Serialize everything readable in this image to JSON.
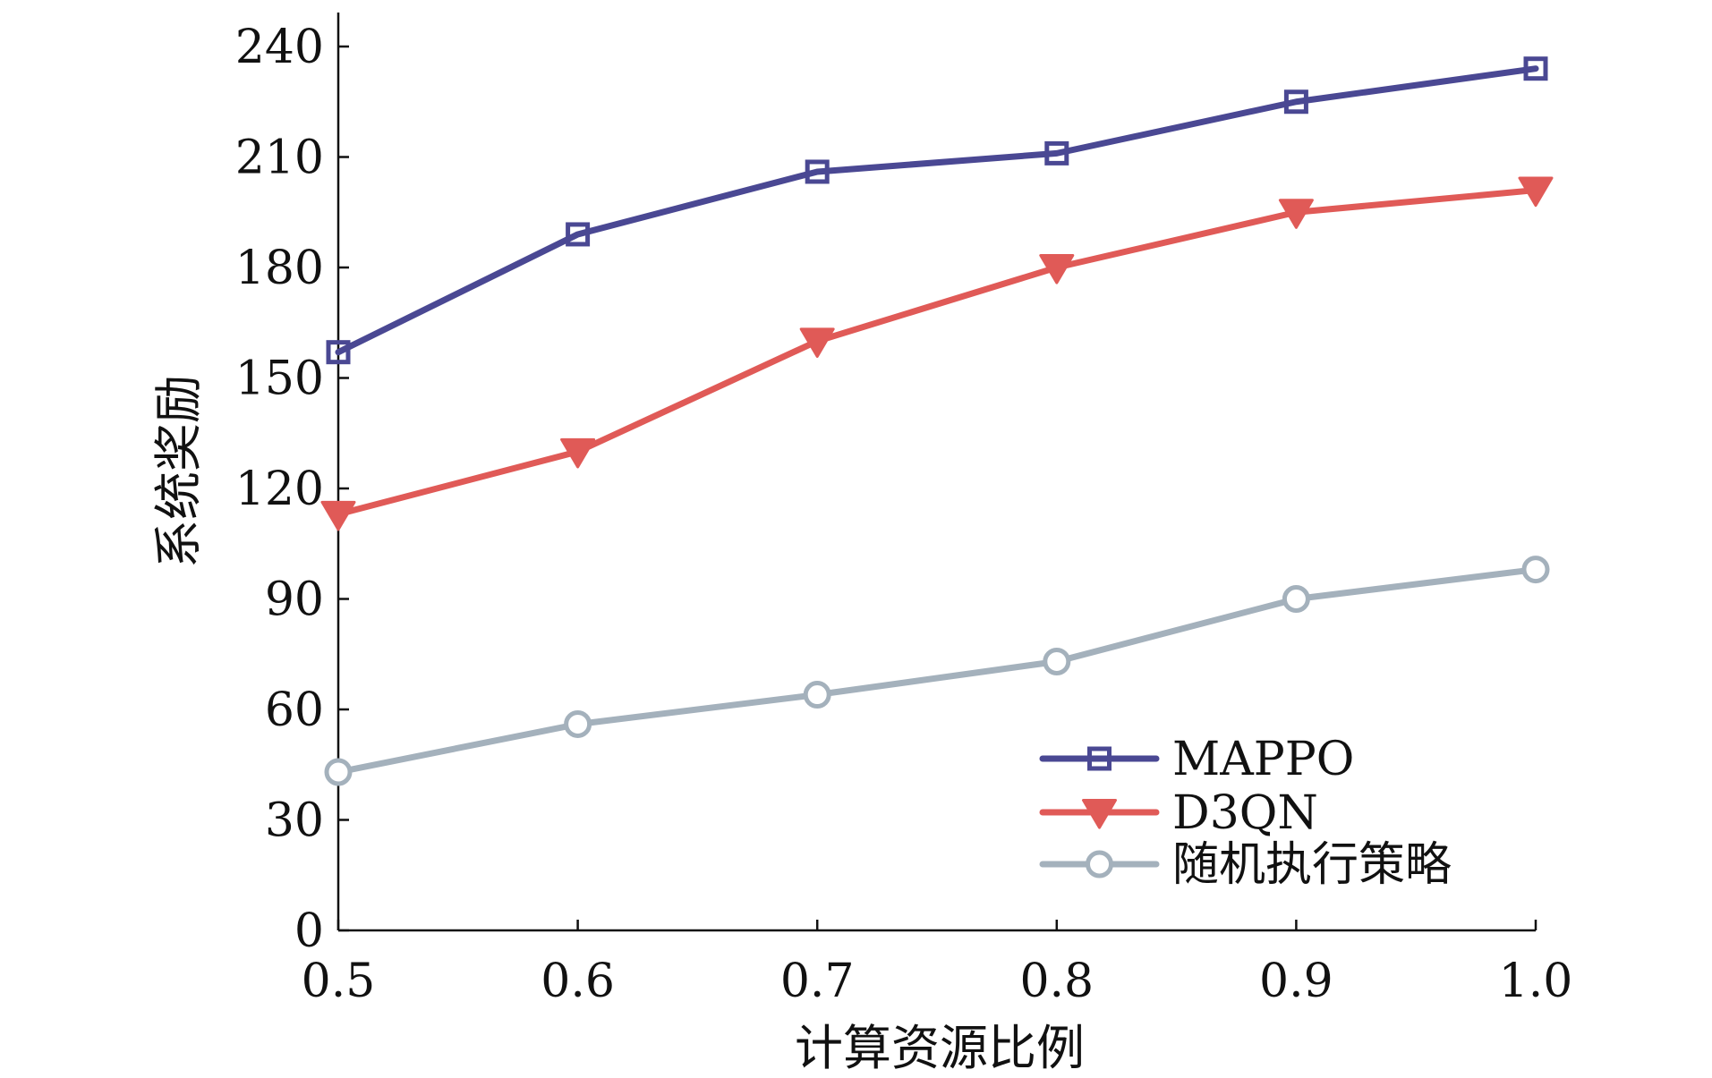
{
  "chart_data": {
    "type": "line",
    "title": "",
    "xlabel": "计算资源比例",
    "ylabel": "系统奖励",
    "x": [
      0.5,
      0.6,
      0.7,
      0.8,
      0.9,
      1.0
    ],
    "x_tick_labels": [
      "0.5",
      "0.6",
      "0.7",
      "0.8",
      "0.9",
      "1.0"
    ],
    "y_ticks": [
      0,
      30,
      60,
      90,
      120,
      150,
      180,
      210,
      240
    ],
    "y_tick_labels": [
      "0",
      "30",
      "60",
      "90",
      "120",
      "150",
      "180",
      "210",
      "240"
    ],
    "xlim": [
      0.5,
      1.0
    ],
    "ylim": [
      0,
      240
    ],
    "grid": false,
    "legend_position": "bottom-right",
    "series": [
      {
        "name": "MAPPO",
        "color": "#4a4893",
        "marker": "square",
        "values": [
          157,
          189,
          206,
          211,
          225,
          234
        ]
      },
      {
        "name": "D3QN",
        "color": "#e05a57",
        "marker": "triangle-down",
        "values": [
          113,
          130,
          160,
          180,
          195,
          201
        ]
      },
      {
        "name": "随机执行策略",
        "color": "#a4b1bc",
        "marker": "circle",
        "values": [
          43,
          56,
          64,
          73,
          90,
          98
        ]
      }
    ]
  }
}
